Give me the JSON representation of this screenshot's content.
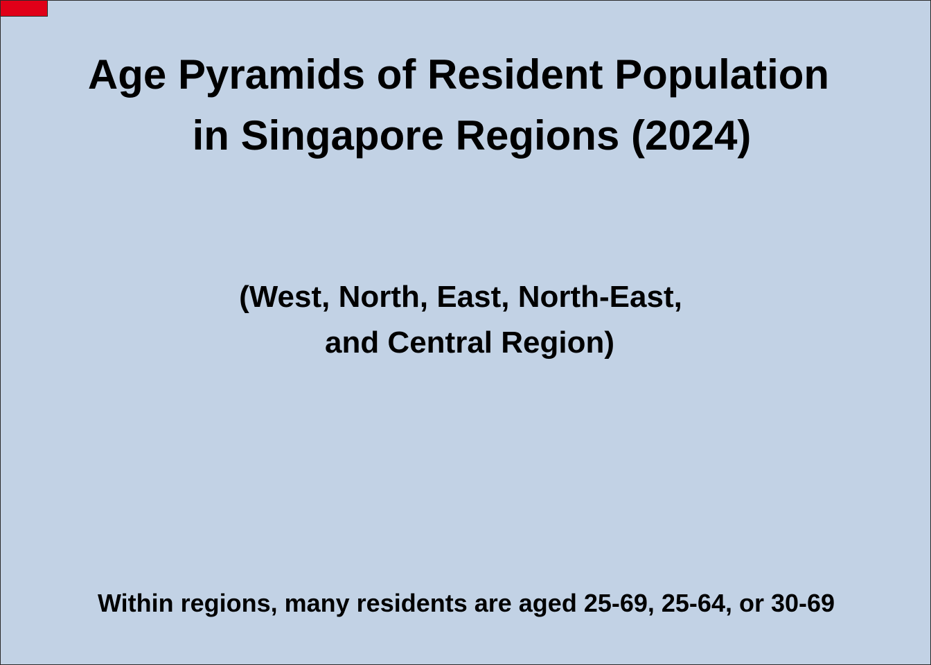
{
  "slide": {
    "title_line_1": "Age Pyramids of Resident Population",
    "title_line_2": "in Singapore Regions (2024)",
    "subtitle_line_1": "(West, North, East, North-East,",
    "subtitle_line_2": "and Central Region)",
    "footnote": "Within regions, many residents are aged 25-69, 25-64, or 30-69"
  },
  "colors": {
    "background": "#c2d2e5",
    "accent_tab": "#e00018",
    "text": "#000000"
  }
}
